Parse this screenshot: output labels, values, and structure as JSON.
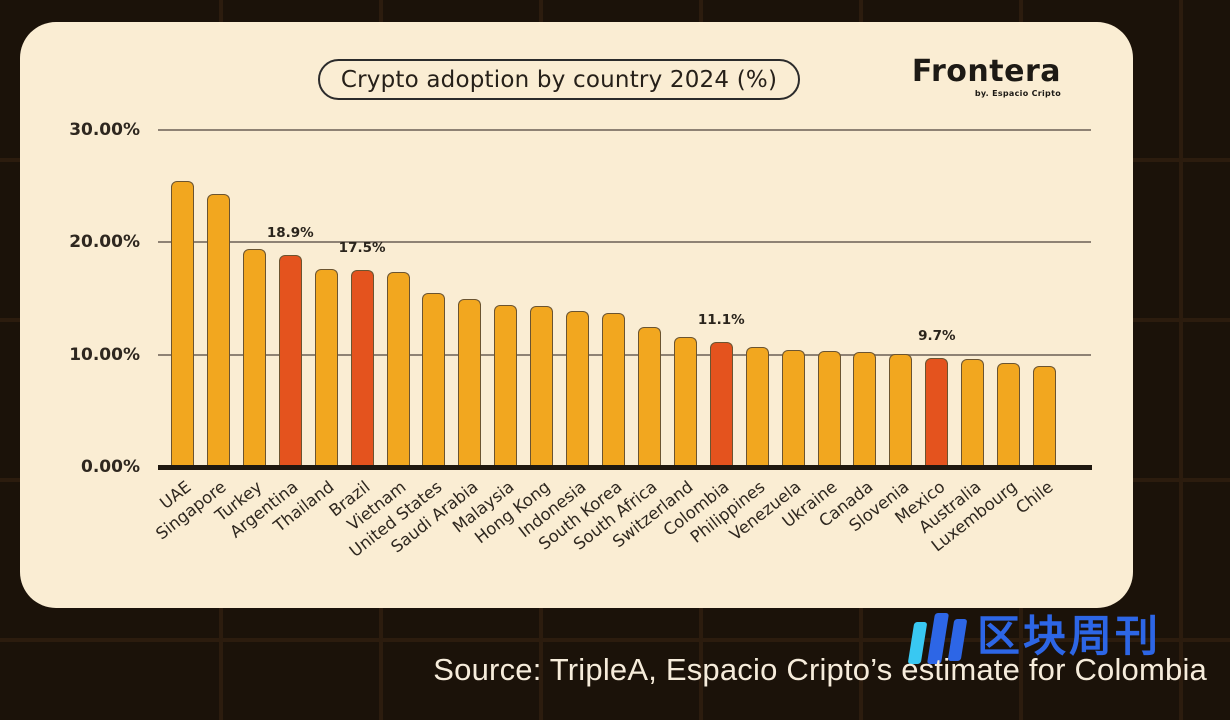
{
  "card": {
    "title": "Crypto adoption by country 2024 (%)",
    "brand": {
      "name": "Frontera",
      "tagline": "by. Espacio Cripto"
    }
  },
  "chart_data": {
    "type": "bar",
    "title": "Crypto adoption by country 2024 (%)",
    "categories": [
      "UAE",
      "Singapore",
      "Turkey",
      "Argentina",
      "Thailand",
      "Brazil",
      "Vietnam",
      "United States",
      "Saudi Arabia",
      "Malaysia",
      "Hong Kong",
      "Indonesia",
      "South Korea",
      "South Africa",
      "Switzerland",
      "Colombia",
      "Philippines",
      "Venezuela",
      "Ukraine",
      "Canada",
      "Slovenia",
      "Mexico",
      "Australia",
      "Luxembourg",
      "Chile"
    ],
    "values": [
      25.5,
      24.3,
      19.4,
      18.9,
      17.6,
      17.5,
      17.4,
      15.5,
      15.0,
      14.4,
      14.3,
      13.9,
      13.7,
      12.5,
      11.6,
      11.1,
      10.7,
      10.4,
      10.3,
      10.2,
      10.1,
      9.7,
      9.6,
      9.3,
      9.0
    ],
    "highlighted": [
      "Argentina",
      "Brazil",
      "Colombia",
      "Mexico"
    ],
    "data_labels": {
      "Argentina": "18.9%",
      "Brazil": "17.5%",
      "Colombia": "11.1%",
      "Mexico": "9.7%"
    },
    "yticks": [
      30,
      20,
      10,
      0
    ],
    "ytick_labels": [
      "30.00%",
      "20.00%",
      "10.00%",
      "0.00%"
    ],
    "ylim": [
      0,
      30
    ],
    "grid": true,
    "legend": false,
    "colors": {
      "bar": "#F2A71F",
      "highlight": "#E4531E",
      "bar_border": "#6b5430",
      "gridline": "#8e8274",
      "axis": "#1f1810",
      "card_bg": "#FAEDD3",
      "text": "#2e271f"
    }
  },
  "footer": {
    "source": "Source: TripleA, Espacio Cripto’s estimate for Colombia",
    "logo_text": "区块周刊",
    "logo_blue": "#2D66E6",
    "logo_cyan": "#39C8F2"
  }
}
